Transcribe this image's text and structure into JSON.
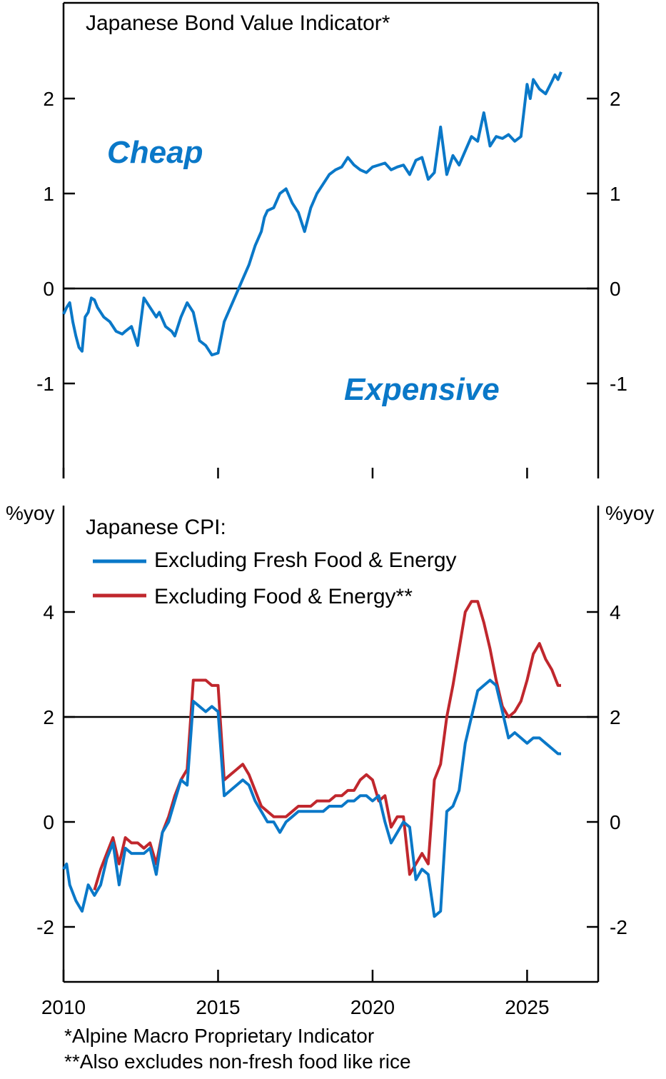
{
  "colors": {
    "bond": "#0a78c8",
    "core_ex_fresh": "#0a78c8",
    "core_ex_food": "#c0272d",
    "zero_line": "#000000",
    "axis": "#000000"
  },
  "chart_data": [
    {
      "type": "line",
      "title": "Japanese Bond Value Indicator*",
      "ylim": [
        -2,
        3
      ],
      "yticks": [
        -1,
        0,
        1,
        2
      ],
      "ytick_labels": [
        "-1",
        "0",
        "1",
        "2"
      ],
      "reference_line": 0,
      "annotations": {
        "upper": "Cheap",
        "lower": "Expensive"
      },
      "series": [
        {
          "name": "Japanese Bond Value Indicator",
          "x": [
            2010.0,
            2010.1,
            2010.2,
            2010.3,
            2010.4,
            2010.5,
            2010.6,
            2010.7,
            2010.8,
            2010.9,
            2011.0,
            2011.1,
            2011.2,
            2011.3,
            2011.5,
            2011.7,
            2011.9,
            2012.0,
            2012.2,
            2012.4,
            2012.6,
            2012.8,
            2013.0,
            2013.1,
            2013.3,
            2013.5,
            2013.6,
            2013.8,
            2014.0,
            2014.2,
            2014.4,
            2014.6,
            2014.8,
            2015.0,
            2015.2,
            2015.4,
            2015.6,
            2015.8,
            2016.0,
            2016.1,
            2016.2,
            2016.4,
            2016.5,
            2016.6,
            2016.8,
            2017.0,
            2017.2,
            2017.4,
            2017.6,
            2017.8,
            2018.0,
            2018.2,
            2018.4,
            2018.6,
            2018.8,
            2019.0,
            2019.2,
            2019.4,
            2019.6,
            2019.8,
            2020.0,
            2020.2,
            2020.4,
            2020.6,
            2020.8,
            2021.0,
            2021.2,
            2021.4,
            2021.6,
            2021.8,
            2022.0,
            2022.2,
            2022.4,
            2022.6,
            2022.8,
            2023.0,
            2023.2,
            2023.4,
            2023.6,
            2023.8,
            2024.0,
            2024.2,
            2024.4,
            2024.6,
            2024.8,
            2025.0,
            2025.1,
            2025.2,
            2025.4,
            2025.6,
            2025.8,
            2025.9,
            2026.0,
            2026.1
          ],
          "values": [
            -0.27,
            -0.2,
            -0.15,
            -0.35,
            -0.5,
            -0.62,
            -0.66,
            -0.3,
            -0.25,
            -0.1,
            -0.12,
            -0.2,
            -0.25,
            -0.3,
            -0.35,
            -0.45,
            -0.48,
            -0.45,
            -0.4,
            -0.6,
            -0.1,
            -0.2,
            -0.3,
            -0.25,
            -0.4,
            -0.45,
            -0.5,
            -0.3,
            -0.15,
            -0.25,
            -0.55,
            -0.6,
            -0.7,
            -0.68,
            -0.35,
            -0.2,
            -0.05,
            0.1,
            0.25,
            0.35,
            0.45,
            0.6,
            0.75,
            0.82,
            0.85,
            1.0,
            1.05,
            0.9,
            0.8,
            0.6,
            0.85,
            1.0,
            1.1,
            1.2,
            1.25,
            1.28,
            1.38,
            1.3,
            1.25,
            1.22,
            1.28,
            1.3,
            1.32,
            1.25,
            1.28,
            1.3,
            1.2,
            1.35,
            1.38,
            1.15,
            1.22,
            1.7,
            1.2,
            1.4,
            1.3,
            1.45,
            1.6,
            1.55,
            1.85,
            1.5,
            1.6,
            1.58,
            1.62,
            1.55,
            1.6,
            2.15,
            2.0,
            2.2,
            2.1,
            2.05,
            2.18,
            2.25,
            2.2,
            2.28
          ]
        }
      ]
    },
    {
      "type": "line",
      "title": "Japanese CPI:",
      "ylabel": "%yoy",
      "ylim": [
        -3,
        6
      ],
      "yticks": [
        -2,
        0,
        2,
        4
      ],
      "ytick_labels": [
        "-2",
        "0",
        "2",
        "4"
      ],
      "xlim": [
        2010,
        2027.3
      ],
      "xticks": [
        2010,
        2015,
        2020,
        2025
      ],
      "xtick_labels": [
        "2010",
        "2015",
        "2020",
        "2025"
      ],
      "reference_line": 2,
      "legend_placement": "top-left",
      "series": [
        {
          "name": "Excluding Fresh Food & Energy",
          "x": [
            2010.0,
            2010.1,
            2010.2,
            2010.4,
            2010.6,
            2010.8,
            2011.0,
            2011.2,
            2011.4,
            2011.6,
            2011.8,
            2012.0,
            2012.2,
            2012.4,
            2012.6,
            2012.8,
            2013.0,
            2013.2,
            2013.4,
            2013.6,
            2013.8,
            2014.0,
            2014.2,
            2014.4,
            2014.6,
            2014.8,
            2015.0,
            2015.2,
            2015.4,
            2015.6,
            2015.8,
            2016.0,
            2016.2,
            2016.4,
            2016.6,
            2016.8,
            2017.0,
            2017.2,
            2017.4,
            2017.6,
            2017.8,
            2018.0,
            2018.2,
            2018.4,
            2018.6,
            2018.8,
            2019.0,
            2019.2,
            2019.4,
            2019.6,
            2019.8,
            2020.0,
            2020.2,
            2020.4,
            2020.6,
            2020.8,
            2021.0,
            2021.2,
            2021.4,
            2021.6,
            2021.8,
            2022.0,
            2022.2,
            2022.4,
            2022.6,
            2022.8,
            2023.0,
            2023.2,
            2023.4,
            2023.6,
            2023.8,
            2024.0,
            2024.2,
            2024.4,
            2024.6,
            2024.8,
            2025.0,
            2025.2,
            2025.4,
            2025.6,
            2025.8,
            2026.0,
            2026.1
          ],
          "values": [
            -0.9,
            -0.8,
            -1.2,
            -1.5,
            -1.7,
            -1.2,
            -1.4,
            -1.2,
            -0.7,
            -0.4,
            -1.2,
            -0.5,
            -0.6,
            -0.6,
            -0.6,
            -0.5,
            -1.0,
            -0.2,
            0.0,
            0.4,
            0.8,
            0.7,
            2.3,
            2.2,
            2.1,
            2.2,
            2.1,
            0.5,
            0.6,
            0.7,
            0.8,
            0.7,
            0.4,
            0.2,
            0.0,
            0.0,
            -0.2,
            0.0,
            0.1,
            0.2,
            0.2,
            0.2,
            0.2,
            0.2,
            0.3,
            0.3,
            0.3,
            0.4,
            0.4,
            0.5,
            0.5,
            0.4,
            0.5,
            0.0,
            -0.4,
            -0.2,
            0.0,
            -0.1,
            -1.1,
            -0.9,
            -1.0,
            -1.8,
            -1.7,
            0.2,
            0.3,
            0.6,
            1.5,
            2.0,
            2.5,
            2.6,
            2.7,
            2.6,
            2.1,
            1.6,
            1.7,
            1.6,
            1.5,
            1.6,
            1.6,
            1.5,
            1.4,
            1.3,
            1.3
          ]
        },
        {
          "name": "Excluding Food & Energy**",
          "x": [
            2011.0,
            2011.2,
            2011.4,
            2011.6,
            2011.8,
            2012.0,
            2012.2,
            2012.4,
            2012.6,
            2012.8,
            2013.0,
            2013.2,
            2013.4,
            2013.6,
            2013.8,
            2014.0,
            2014.2,
            2014.4,
            2014.6,
            2014.8,
            2015.0,
            2015.2,
            2015.4,
            2015.6,
            2015.8,
            2016.0,
            2016.2,
            2016.4,
            2016.6,
            2016.8,
            2017.0,
            2017.2,
            2017.4,
            2017.6,
            2017.8,
            2018.0,
            2018.2,
            2018.4,
            2018.6,
            2018.8,
            2019.0,
            2019.2,
            2019.4,
            2019.6,
            2019.8,
            2020.0,
            2020.2,
            2020.4,
            2020.6,
            2020.8,
            2021.0,
            2021.2,
            2021.4,
            2021.6,
            2021.8,
            2022.0,
            2022.2,
            2022.4,
            2022.6,
            2022.8,
            2023.0,
            2023.2,
            2023.4,
            2023.6,
            2023.8,
            2024.0,
            2024.2,
            2024.4,
            2024.6,
            2024.8,
            2025.0,
            2025.2,
            2025.4,
            2025.6,
            2025.8,
            2026.0,
            2026.1
          ],
          "values": [
            -1.3,
            -0.9,
            -0.6,
            -0.3,
            -0.8,
            -0.3,
            -0.4,
            -0.4,
            -0.5,
            -0.4,
            -0.8,
            -0.2,
            0.1,
            0.5,
            0.8,
            1.0,
            2.7,
            2.7,
            2.7,
            2.6,
            2.6,
            0.8,
            0.9,
            1.0,
            1.1,
            0.9,
            0.6,
            0.3,
            0.2,
            0.1,
            0.1,
            0.1,
            0.2,
            0.3,
            0.3,
            0.3,
            0.4,
            0.4,
            0.4,
            0.5,
            0.5,
            0.6,
            0.6,
            0.8,
            0.9,
            0.8,
            0.4,
            0.5,
            -0.1,
            0.1,
            0.1,
            -1.0,
            -0.8,
            -0.6,
            -0.8,
            0.8,
            1.1,
            2.0,
            2.6,
            3.3,
            4.0,
            4.2,
            4.2,
            3.8,
            3.3,
            2.7,
            2.2,
            2.0,
            2.1,
            2.3,
            2.7,
            3.2,
            3.4,
            3.1,
            2.9,
            2.6,
            2.6
          ]
        }
      ]
    }
  ],
  "footnotes": [
    "*Alpine Macro Proprietary Indicator",
    "**Also excludes non-fresh food like rice"
  ]
}
